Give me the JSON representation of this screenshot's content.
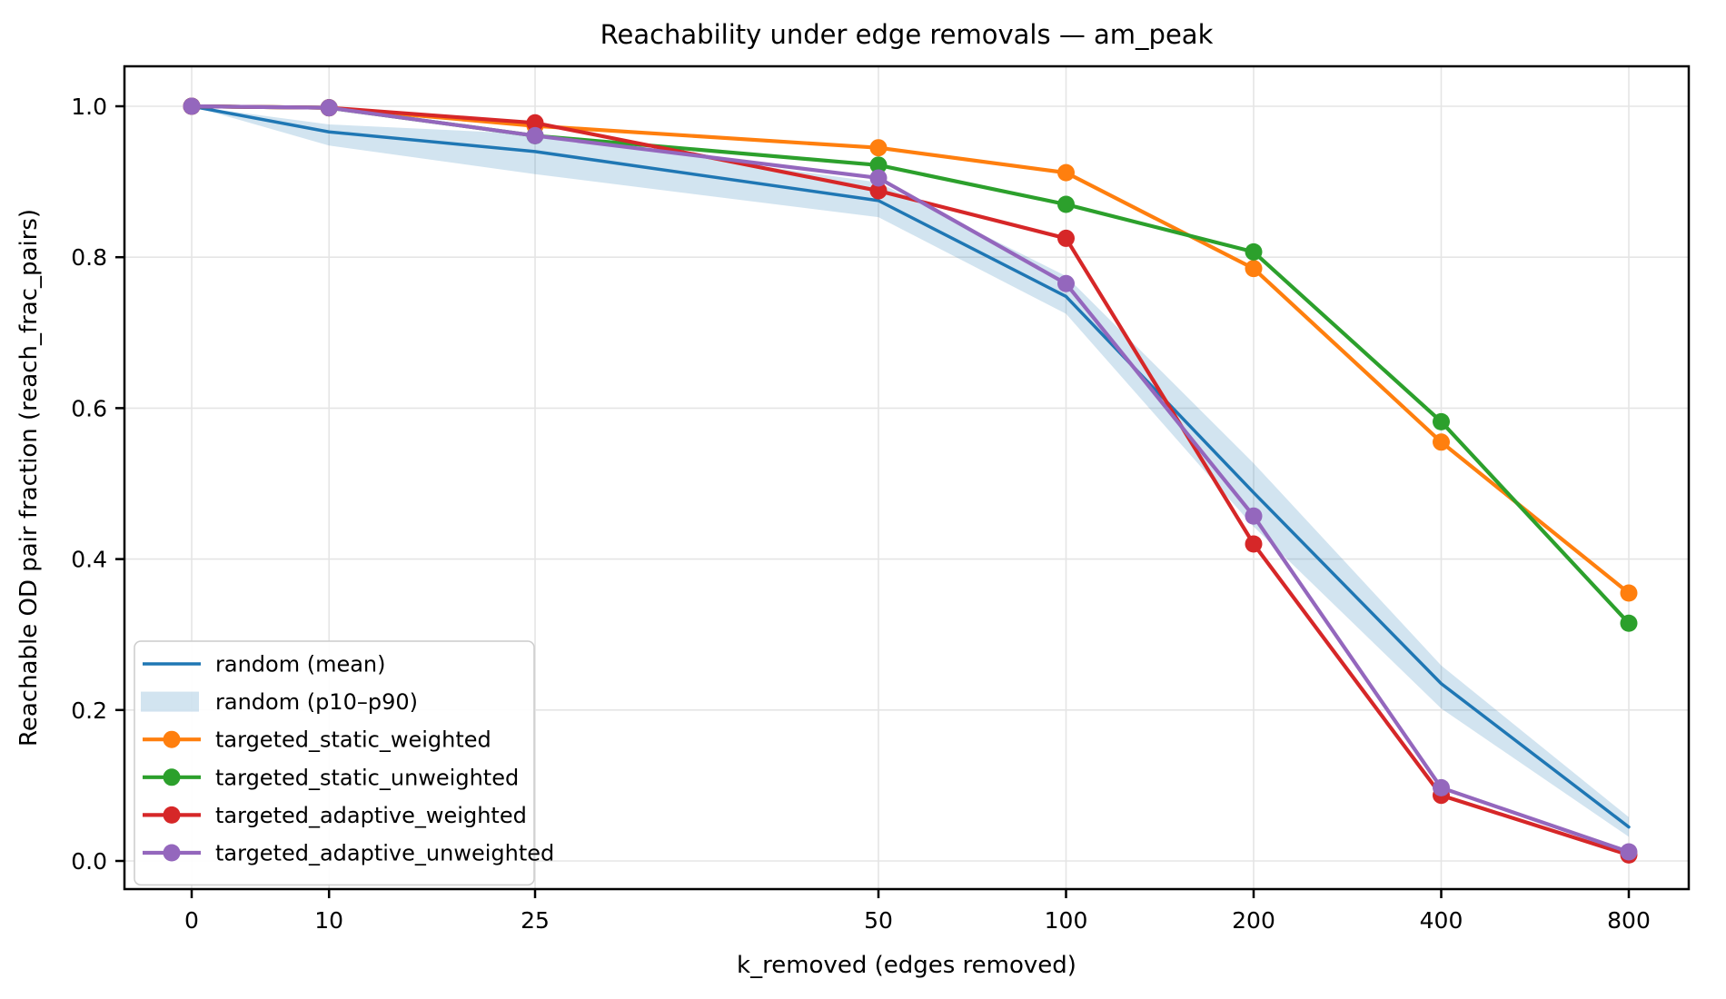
{
  "figure": {
    "background": "#ffffff",
    "text_color": "#000000",
    "grid_color": "#e5e5e5",
    "spine_color": "#000000",
    "legend_border_color": "#cccccc"
  },
  "chart_data": {
    "type": "line",
    "title": "Reachability under edge removals — am_peak",
    "xlabel": "k_removed (edges removed)",
    "ylabel": "Reachable OD pair fraction (reach_frac_pairs)",
    "x_scale": "symlog (linear 0–50, log2 beyond 50)",
    "grid": true,
    "legend_position": "lower left",
    "x": [
      0,
      10,
      25,
      50,
      100,
      200,
      400,
      800
    ],
    "xtick_labels": [
      "0",
      "10",
      "25",
      "50",
      "100",
      "200",
      "400",
      "800"
    ],
    "yticks": [
      0.0,
      0.2,
      0.4,
      0.6,
      0.8,
      1.0
    ],
    "ytick_labels": [
      "0.0",
      "0.2",
      "0.4",
      "0.6",
      "0.8",
      "1.0"
    ],
    "ylim": [
      -0.037,
      1.053
    ],
    "series": [
      {
        "label": "random (mean)",
        "kind": "line",
        "color": "#1f77b4",
        "values": [
          1.0,
          0.966,
          0.94,
          0.875,
          0.748,
          0.488,
          0.235,
          0.045
        ]
      },
      {
        "label": "random (p10–p90)",
        "kind": "band",
        "color": "#1f77b4",
        "fill_opacity": 0.2,
        "upper": [
          1.0,
          0.976,
          0.963,
          0.899,
          0.775,
          0.527,
          0.259,
          0.058
        ],
        "lower": [
          1.0,
          0.948,
          0.91,
          0.853,
          0.725,
          0.443,
          0.202,
          0.032
        ]
      },
      {
        "label": "targeted_static_weighted",
        "kind": "line-marker",
        "color": "#ff7f0e",
        "values": [
          1.0,
          0.998,
          0.974,
          0.945,
          0.912,
          0.785,
          0.555,
          0.355
        ]
      },
      {
        "label": "targeted_static_unweighted",
        "kind": "line-marker",
        "color": "#2ca02c",
        "values": [
          1.0,
          0.998,
          0.961,
          0.922,
          0.87,
          0.807,
          0.582,
          0.315
        ]
      },
      {
        "label": "targeted_adaptive_weighted",
        "kind": "line-marker",
        "color": "#d62728",
        "values": [
          1.0,
          0.998,
          0.978,
          0.888,
          0.825,
          0.42,
          0.087,
          0.008
        ]
      },
      {
        "label": "targeted_adaptive_unweighted",
        "kind": "line-marker",
        "color": "#9467bd",
        "values": [
          1.0,
          0.998,
          0.961,
          0.905,
          0.765,
          0.457,
          0.097,
          0.012
        ]
      }
    ]
  }
}
